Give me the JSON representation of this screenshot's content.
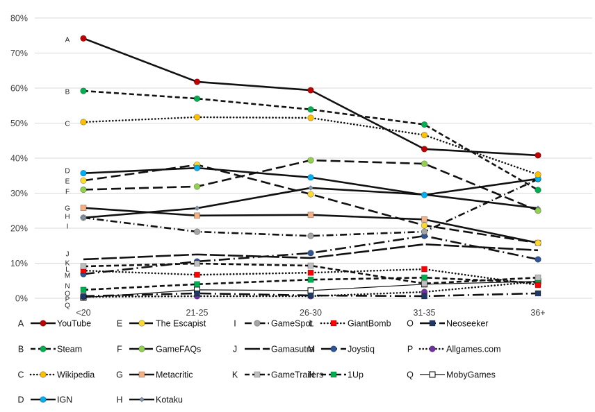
{
  "chart_data": {
    "type": "line",
    "categories": [
      "<20",
      "21-25",
      "26-30",
      "31-35",
      "36+"
    ],
    "ylim": [
      0,
      80
    ],
    "yticks": [
      "0%",
      "10%",
      "20%",
      "30%",
      "40%",
      "50%",
      "60%",
      "70%",
      "80%"
    ],
    "grid": "horizontal",
    "legend": "bottom",
    "series": [
      {
        "letter": "A",
        "name": "YouTube",
        "values": [
          74.2,
          61.8,
          59.4,
          42.6,
          40.8
        ],
        "marker": "circle",
        "color": "#c00000",
        "line": "solid"
      },
      {
        "letter": "B",
        "name": "Steam",
        "values": [
          59.2,
          57.0,
          53.9,
          49.6,
          30.9
        ],
        "marker": "circle",
        "color": "#00b050",
        "line": "dashed"
      },
      {
        "letter": "C",
        "name": "Wikipedia",
        "values": [
          50.3,
          51.7,
          51.5,
          46.6,
          35.3
        ],
        "marker": "circle",
        "color": "#ffc000",
        "line": "dotted"
      },
      {
        "letter": "D",
        "name": "IGN",
        "values": [
          35.7,
          37.2,
          34.5,
          29.5,
          34.1
        ],
        "marker": "circle",
        "color": "#00b0f0",
        "line": "solid"
      },
      {
        "letter": "E",
        "name": "The Escapist",
        "values": [
          33.6,
          38.1,
          29.7,
          20.8,
          15.8
        ],
        "marker": "circle",
        "color": "#ffd930",
        "line": "long-dash"
      },
      {
        "letter": "F",
        "name": "GameFAQs",
        "values": [
          31.0,
          31.9,
          39.4,
          38.4,
          25.0
        ],
        "marker": "circle",
        "color": "#92d050",
        "line": "long-dash"
      },
      {
        "letter": "G",
        "name": "Metacritic",
        "values": [
          25.8,
          23.6,
          23.8,
          22.5,
          15.8
        ],
        "marker": "square",
        "color": "#f4b183",
        "line": "solid"
      },
      {
        "letter": "H",
        "name": "Kotaku",
        "values": [
          23.0,
          25.7,
          31.5,
          29.6,
          25.7
        ],
        "marker": "diamond",
        "color": "#8497b0",
        "line": "solid"
      },
      {
        "letter": "I",
        "name": "GameSpot",
        "values": [
          23.0,
          19.0,
          17.8,
          19.0,
          34.0
        ],
        "marker": "circle",
        "color": "#a5a5a5",
        "line": "dash-dot"
      },
      {
        "letter": "J",
        "name": "Gamasutra",
        "values": [
          11.1,
          12.5,
          11.5,
          15.4,
          13.7
        ],
        "marker": "none",
        "color": "#111111",
        "line": "very-long-dash"
      },
      {
        "letter": "K",
        "name": "GameTrailers",
        "values": [
          9.1,
          9.9,
          9.3,
          4.2,
          5.9
        ],
        "marker": "square",
        "color": "#c0c0c0",
        "line": "dashed"
      },
      {
        "letter": "L",
        "name": "GiantBomb",
        "values": [
          7.9,
          6.7,
          7.3,
          8.3,
          3.8
        ],
        "marker": "square",
        "color": "#ff0000",
        "line": "dotted"
      },
      {
        "letter": "M",
        "name": "Joystiq",
        "values": [
          6.9,
          10.5,
          12.9,
          17.8,
          11.1
        ],
        "marker": "circle",
        "color": "#2f5597",
        "line": "long-dash-dot"
      },
      {
        "letter": "N",
        "name": "1Up",
        "values": [
          2.4,
          4.0,
          5.3,
          5.9,
          4.4
        ],
        "marker": "square",
        "color": "#00b050",
        "line": "dashed"
      },
      {
        "letter": "O",
        "name": "Neoseeker",
        "values": [
          0.6,
          1.4,
          0.8,
          0.6,
          1.4
        ],
        "marker": "square",
        "color": "#1f3864",
        "line": "long-dash-dot"
      },
      {
        "letter": "P",
        "name": "Allgames.com",
        "values": [
          0.4,
          0.6,
          0.6,
          1.8,
          4.8
        ],
        "marker": "circle",
        "color": "#7030a0",
        "line": "dotted"
      },
      {
        "letter": "Q",
        "name": "MobyGames",
        "values": [
          0.2,
          2.4,
          2.2,
          4.0,
          4.8
        ],
        "marker": "square",
        "color": "#ffffff",
        "line": "thin-solid"
      }
    ]
  }
}
